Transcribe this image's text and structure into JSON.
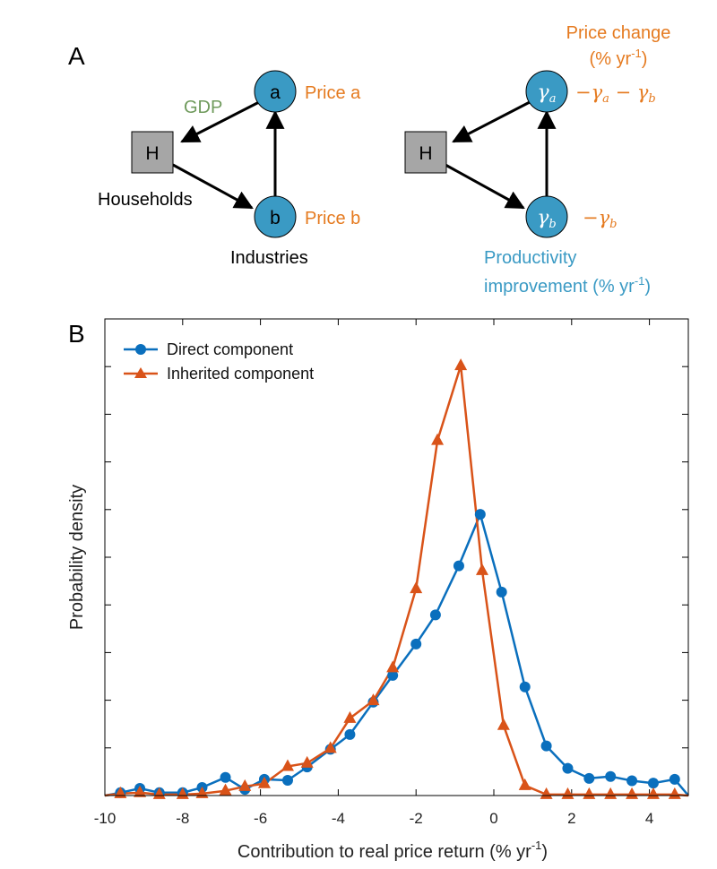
{
  "panelA": {
    "letter": "A",
    "left": {
      "node_h": "H",
      "node_a": "a",
      "node_b": "b",
      "gdp_label": "GDP",
      "price_a": "Price a",
      "price_b": "Price b",
      "households": "Households",
      "industries": "Industries"
    },
    "right": {
      "node_h": "H",
      "node_a_math": "γ",
      "node_a_sub": "a",
      "node_b_math": "γ",
      "node_b_sub": "b",
      "price_change_line1": "Price change",
      "price_change_line2_pre": "(% yr",
      "price_change_line2_sup": "-1",
      "price_change_line2_post": ")",
      "expr_a_part1": "−γ",
      "expr_a_sub1": "a",
      "expr_a_part2": " − γ",
      "expr_a_sub2": "b",
      "expr_b_part1": "−γ",
      "expr_b_sub1": "b",
      "productivity_line1": "Productivity",
      "productivity_line2_pre": "improvement (% yr",
      "productivity_line2_sup": "-1",
      "productivity_line2_post": ")"
    },
    "colors": {
      "node_fill": "#3a9ac4",
      "square_fill": "#a6a6a6",
      "orange": "#e57a1f",
      "green": "#6f9a5c",
      "blue_text": "#3a9ac4"
    }
  },
  "panelB": {
    "letter": "B"
  },
  "chart_data": {
    "type": "line",
    "xlabel_pre": "Contribution to real price return (% yr",
    "xlabel_sup": "-1",
    "xlabel_post": ")",
    "ylabel": "Probability density",
    "xlim": [
      -10,
      5
    ],
    "ylim": [
      0,
      1.0
    ],
    "xticks": [
      -10,
      -8,
      -6,
      -4,
      -2,
      0,
      2,
      4
    ],
    "xtick_labels": [
      "-10",
      "-8",
      "-6",
      "-4",
      "-2",
      "0",
      "2",
      "4"
    ],
    "ytick_count": 10,
    "legend_position": "top-left",
    "series": [
      {
        "name": "Direct component",
        "marker": "circle",
        "color": "#0a6fbd",
        "points": [
          [
            -10.1,
            0.0
          ],
          [
            -9.6,
            0.006
          ],
          [
            -9.1,
            0.015
          ],
          [
            -8.6,
            0.006
          ],
          [
            -8.0,
            0.006
          ],
          [
            -7.5,
            0.017
          ],
          [
            -6.9,
            0.038
          ],
          [
            -6.4,
            0.013
          ],
          [
            -5.9,
            0.034
          ],
          [
            -5.3,
            0.032
          ],
          [
            -4.8,
            0.06
          ],
          [
            -4.2,
            0.097
          ],
          [
            -3.7,
            0.128
          ],
          [
            -3.1,
            0.196
          ],
          [
            -2.6,
            0.252
          ],
          [
            -2.0,
            0.318
          ],
          [
            -1.5,
            0.379
          ],
          [
            -0.9,
            0.482
          ],
          [
            -0.35,
            0.59
          ],
          [
            0.2,
            0.427
          ],
          [
            0.8,
            0.228
          ],
          [
            1.35,
            0.104
          ],
          [
            1.9,
            0.057
          ],
          [
            2.45,
            0.036
          ],
          [
            3.0,
            0.04
          ],
          [
            3.55,
            0.031
          ],
          [
            4.1,
            0.026
          ],
          [
            4.65,
            0.034
          ],
          [
            5.2,
            0.0
          ]
        ]
      },
      {
        "name": "Inherited component",
        "marker": "triangle",
        "color": "#d95319",
        "points": [
          [
            -10.1,
            0.0
          ],
          [
            -9.6,
            0.004
          ],
          [
            -9.1,
            0.006
          ],
          [
            -8.6,
            0.002
          ],
          [
            -8.0,
            0.002
          ],
          [
            -7.5,
            0.004
          ],
          [
            -6.9,
            0.01
          ],
          [
            -6.4,
            0.019
          ],
          [
            -5.9,
            0.025
          ],
          [
            -5.3,
            0.061
          ],
          [
            -4.8,
            0.068
          ],
          [
            -4.2,
            0.099
          ],
          [
            -3.7,
            0.162
          ],
          [
            -3.1,
            0.199
          ],
          [
            -2.6,
            0.268
          ],
          [
            -2.0,
            0.434
          ],
          [
            -1.45,
            0.745
          ],
          [
            -0.85,
            0.902
          ],
          [
            -0.3,
            0.472
          ],
          [
            0.25,
            0.147
          ],
          [
            0.8,
            0.021
          ],
          [
            1.35,
            0.002
          ],
          [
            1.9,
            0.002
          ],
          [
            2.45,
            0.002
          ],
          [
            3.0,
            0.002
          ],
          [
            3.55,
            0.002
          ],
          [
            4.1,
            0.002
          ],
          [
            4.65,
            0.002
          ],
          [
            5.2,
            0.0
          ]
        ]
      }
    ]
  }
}
